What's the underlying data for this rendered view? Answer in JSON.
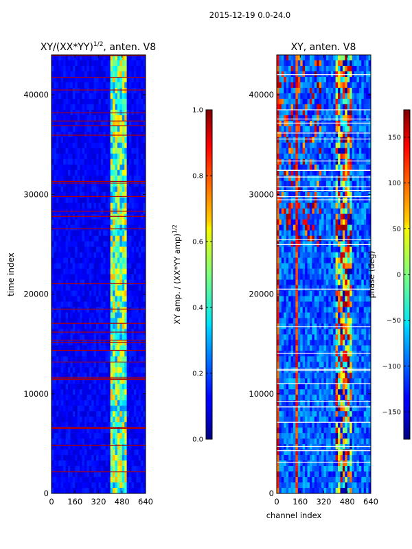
{
  "suptitle": "2015-12-19 0.0-24.0",
  "chart_data": [
    {
      "type": "heatmap",
      "title": "XY/(XX*YY)",
      "title_exponent": "1/2",
      "title_suffix": ", anten. V8",
      "xlabel": "",
      "ylabel": "time index",
      "xlim": [
        0,
        640
      ],
      "ylim": [
        0,
        44000
      ],
      "xticks": [
        "0",
        "160",
        "320",
        "480",
        "640"
      ],
      "yticks": [
        "0",
        "10000",
        "20000",
        "30000",
        "40000"
      ],
      "bright_band_channels": [
        [
          400,
          500
        ]
      ],
      "colorbar": {
        "label": "XY amp. / (XX*YY amp)",
        "label_exponent": "1/2",
        "range": [
          0.0,
          1.0
        ],
        "ticks": [
          "0.0",
          "0.2",
          "0.4",
          "0.6",
          "0.8",
          "1.0"
        ]
      }
    },
    {
      "type": "heatmap",
      "title": "XY, anten. V8",
      "xlabel": "channel index",
      "ylabel": "",
      "xlim": [
        0,
        640
      ],
      "ylim": [
        0,
        44000
      ],
      "xticks": [
        "0",
        "160",
        "320",
        "480",
        "640"
      ],
      "yticks": [
        "0",
        "10000",
        "20000",
        "30000",
        "40000"
      ],
      "colorbar": {
        "label": "phase (deg)",
        "range": [
          -180,
          180
        ],
        "ticks": [
          "−150",
          "−100",
          "−50",
          "0",
          "50",
          "100",
          "150"
        ]
      }
    }
  ]
}
